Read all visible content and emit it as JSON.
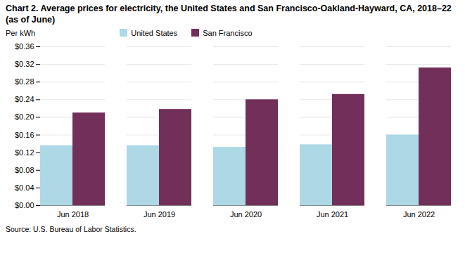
{
  "chart_data": {
    "type": "bar",
    "title": "Chart 2. Average prices for electricity, the United States and San Francisco-Oakland-Hayward, CA, 2018–22 (as of June)",
    "y_label": "Per kWh",
    "caption": "Source: U.S. Bureau of Labor Statistics.",
    "categories": [
      "Jun 2018",
      "Jun 2019",
      "Jun 2020",
      "Jun 2021",
      "Jun 2022"
    ],
    "series": [
      {
        "name": "United States",
        "color": "#add8e6",
        "values": [
          0.136,
          0.136,
          0.132,
          0.138,
          0.16
        ]
      },
      {
        "name": "San Francisco",
        "color": "#722F5A",
        "values": [
          0.21,
          0.218,
          0.24,
          0.252,
          0.312
        ]
      }
    ],
    "ylim": [
      0,
      0.36
    ],
    "yticks": [
      {
        "value": 0.0,
        "label": "$0.00"
      },
      {
        "value": 0.04,
        "label": "$0.04"
      },
      {
        "value": 0.08,
        "label": "$0.08"
      },
      {
        "value": 0.12,
        "label": "$0.12"
      },
      {
        "value": 0.16,
        "label": "$0.16"
      },
      {
        "value": 0.2,
        "label": "$0.20"
      },
      {
        "value": 0.24,
        "label": "$0.24"
      },
      {
        "value": 0.28,
        "label": "$0.28"
      },
      {
        "value": 0.32,
        "label": "$0.32"
      },
      {
        "value": 0.36,
        "label": "$0.36"
      }
    ],
    "grid": true,
    "legend": "top"
  }
}
